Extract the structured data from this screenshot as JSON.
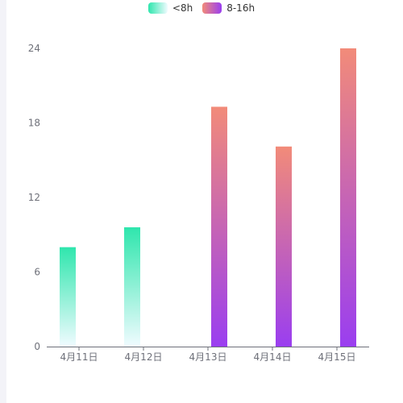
{
  "legend": {
    "items": [
      {
        "name": "<8h"
      },
      {
        "name": "8-16h"
      }
    ]
  },
  "chart_data": {
    "type": "bar",
    "categories": [
      "4月11日",
      "4月12日",
      "4月13日",
      "4月14日",
      "4月15日"
    ],
    "series": [
      {
        "name": "<8h",
        "values": [
          8,
          9.6,
          0,
          0,
          0
        ],
        "gradient": [
          "#2fe6ad",
          "#f0fbff"
        ]
      },
      {
        "name": "8-16h",
        "values": [
          0,
          0,
          19.3,
          16.1,
          24
        ],
        "gradient": [
          "#f28b79",
          "#9a3ef0"
        ]
      }
    ],
    "yticks": [
      0,
      6,
      12,
      18,
      24
    ],
    "ylim": [
      0,
      24
    ],
    "grid": false,
    "legend_position": "top-center"
  }
}
